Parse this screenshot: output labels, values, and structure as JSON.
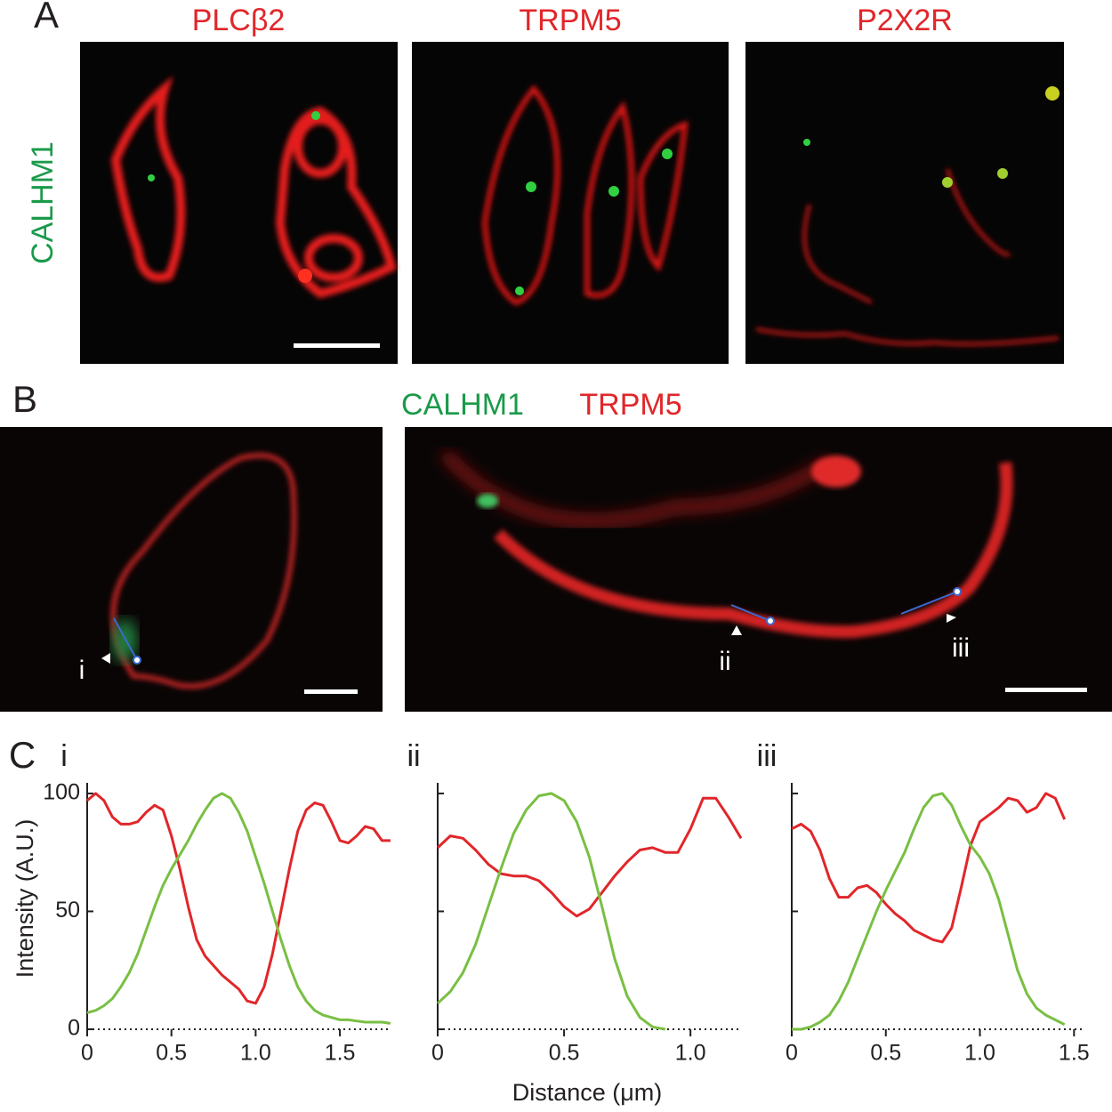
{
  "panel_labels": [
    "A",
    "B",
    "C"
  ],
  "panel_a": {
    "row_label": "CALHM1",
    "columns": [
      "PLCβ2",
      "TRPM5",
      "P2X2R"
    ]
  },
  "panel_b": {
    "legend": [
      {
        "name": "CALHM1",
        "color": "#1a9a4a"
      },
      {
        "name": "TRPM5",
        "color": "#e1262a"
      }
    ],
    "markers": [
      "i",
      "ii",
      "iii"
    ]
  },
  "chart_data": [
    {
      "type": "line",
      "title": "i",
      "y_label": "Intensity (A.U.)",
      "show_ytick_labels": true,
      "xlim": [
        0,
        1.79
      ],
      "ylim": [
        0,
        104.5
      ],
      "yticks": [
        0,
        50,
        100
      ],
      "xticks": [
        0,
        0.5,
        {
          "value": 1,
          "label": "1.0"
        },
        1.5
      ],
      "x": [
        0,
        0.05,
        0.1,
        0.15,
        0.2,
        0.25,
        0.3,
        0.35,
        0.4,
        0.45,
        0.5,
        0.55,
        0.6,
        0.65,
        0.7,
        0.75,
        0.8,
        0.85,
        0.9,
        0.95,
        1,
        1.05,
        1.1,
        1.15,
        1.2,
        1.25,
        1.3,
        1.35,
        1.4,
        1.45,
        1.5,
        1.55,
        1.6,
        1.65,
        1.7,
        1.75,
        1.8
      ],
      "series": [
        {
          "color": "#e1262a",
          "values": [
            97,
            100,
            97,
            90,
            87,
            87,
            88,
            92,
            95,
            93,
            82,
            68,
            52,
            38,
            31,
            27,
            23,
            20,
            17,
            12,
            11,
            18,
            32,
            50,
            68,
            84,
            93,
            96,
            95,
            88,
            80,
            79,
            82,
            86,
            85,
            80,
            80
          ]
        },
        {
          "color": "#79bf43",
          "values": [
            7,
            8,
            10,
            13,
            18,
            24,
            32,
            42,
            52,
            61,
            68,
            74,
            80,
            87,
            93,
            98,
            100,
            98,
            92,
            84,
            73,
            62,
            50,
            38,
            27,
            18,
            12,
            8,
            6,
            5,
            4,
            4,
            3.5,
            3,
            3,
            3,
            2.5
          ]
        }
      ]
    },
    {
      "type": "line",
      "title": "ii",
      "x_label": "Distance (μm)",
      "show_ytick_labels": false,
      "xlim": [
        0,
        1.2
      ],
      "ylim": [
        0,
        104.5
      ],
      "yticks": [
        0,
        50,
        100
      ],
      "xticks": [
        0,
        0.5,
        {
          "value": 1,
          "label": "1.0"
        }
      ],
      "x": [
        0,
        0.05,
        0.1,
        0.15,
        0.2,
        0.25,
        0.3,
        0.35,
        0.4,
        0.45,
        0.5,
        0.55,
        0.6,
        0.65,
        0.7,
        0.75,
        0.8,
        0.85,
        0.9,
        0.95,
        1,
        1.05,
        1.1,
        1.15,
        1.2
      ],
      "series": [
        {
          "color": "#e1262a",
          "values": [
            77,
            82,
            81,
            76,
            70,
            66,
            65,
            65,
            63,
            58,
            52,
            48,
            51,
            58,
            65,
            71,
            76,
            77,
            75,
            75,
            85,
            98,
            98,
            90,
            81
          ]
        },
        {
          "color": "#79bf43",
          "values": [
            11,
            16,
            24,
            36,
            52,
            68,
            83,
            93,
            99,
            100,
            97,
            88,
            73,
            52,
            30,
            14,
            5,
            1,
            0,
            null,
            null,
            null,
            null,
            null,
            null
          ]
        }
      ]
    },
    {
      "type": "line",
      "title": "iii",
      "show_ytick_labels": false,
      "xlim": [
        0,
        1.56
      ],
      "ylim": [
        0,
        104.5
      ],
      "yticks": [
        0,
        50,
        100
      ],
      "xticks": [
        0,
        0.5,
        {
          "value": 1,
          "label": "1.0"
        },
        1.5
      ],
      "x": [
        0,
        0.05,
        0.1,
        0.15,
        0.2,
        0.25,
        0.3,
        0.35,
        0.4,
        0.45,
        0.5,
        0.55,
        0.6,
        0.65,
        0.7,
        0.75,
        0.8,
        0.85,
        0.9,
        0.95,
        1,
        1.05,
        1.1,
        1.15,
        1.2,
        1.25,
        1.3,
        1.35,
        1.4,
        1.45
      ],
      "series": [
        {
          "color": "#e1262a",
          "values": [
            85,
            87,
            84,
            76,
            64,
            56,
            56,
            60,
            61,
            58,
            53,
            49,
            46,
            42,
            40,
            38,
            37,
            43,
            60,
            78,
            88,
            91,
            94,
            98,
            97,
            92,
            94,
            100,
            98,
            89
          ]
        },
        {
          "color": "#79bf43",
          "values": [
            0,
            0,
            1,
            3,
            6,
            12,
            20,
            30,
            40,
            50,
            59,
            67,
            75,
            85,
            94,
            99,
            100,
            95,
            86,
            78,
            73,
            66,
            55,
            40,
            25,
            15,
            9,
            6,
            4,
            2
          ]
        }
      ]
    }
  ]
}
